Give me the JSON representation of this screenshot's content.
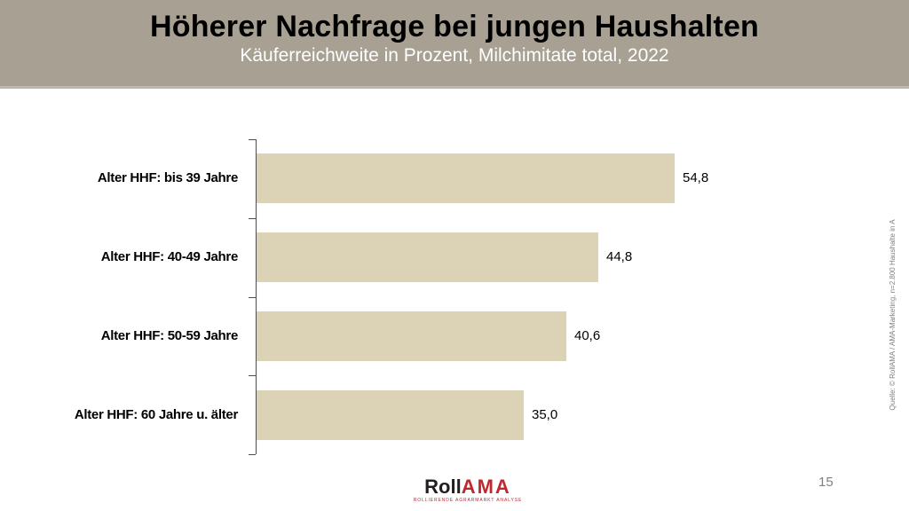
{
  "slide": {
    "title": "Höherer Nachfrage bei jungen Haushalten",
    "subtitle": "Käuferreichweite in Prozent, Milchimitate total, 2022",
    "page_number": "15",
    "source_note": "Quelle: © RollAMA / AMA-Marketing, n=2.800 Haushalte in A",
    "logo": {
      "roll": "Roll",
      "ama": "AMA",
      "tagline": "ROLLIERENDE AGRARMARKT ANALYSE"
    }
  },
  "colors": {
    "header_bg": "#a8a193",
    "bar_fill": "#dcd2b5",
    "subtitle_text": "#ffffff",
    "title_text": "#000000",
    "logo_red": "#c1272d",
    "axis": "#4d4d4d",
    "page_number_gray": "#808080"
  },
  "chart_data": {
    "type": "bar",
    "orientation": "horizontal",
    "title": "Käuferreichweite in Prozent, Milchimitate total, 2022",
    "categories": [
      "Alter HHF: bis 39 Jahre",
      "Alter HHF: 40-49 Jahre",
      "Alter HHF: 50-59 Jahre",
      "Alter HHF: 60 Jahre u. älter"
    ],
    "values": [
      54.8,
      44.8,
      40.6,
      35.0
    ],
    "value_labels": [
      "54,8",
      "44,8",
      "40,6",
      "35,0"
    ],
    "xlabel": "",
    "ylabel": "",
    "xlim": [
      0,
      60
    ],
    "grid": false,
    "legend": false,
    "data_labels": true
  }
}
